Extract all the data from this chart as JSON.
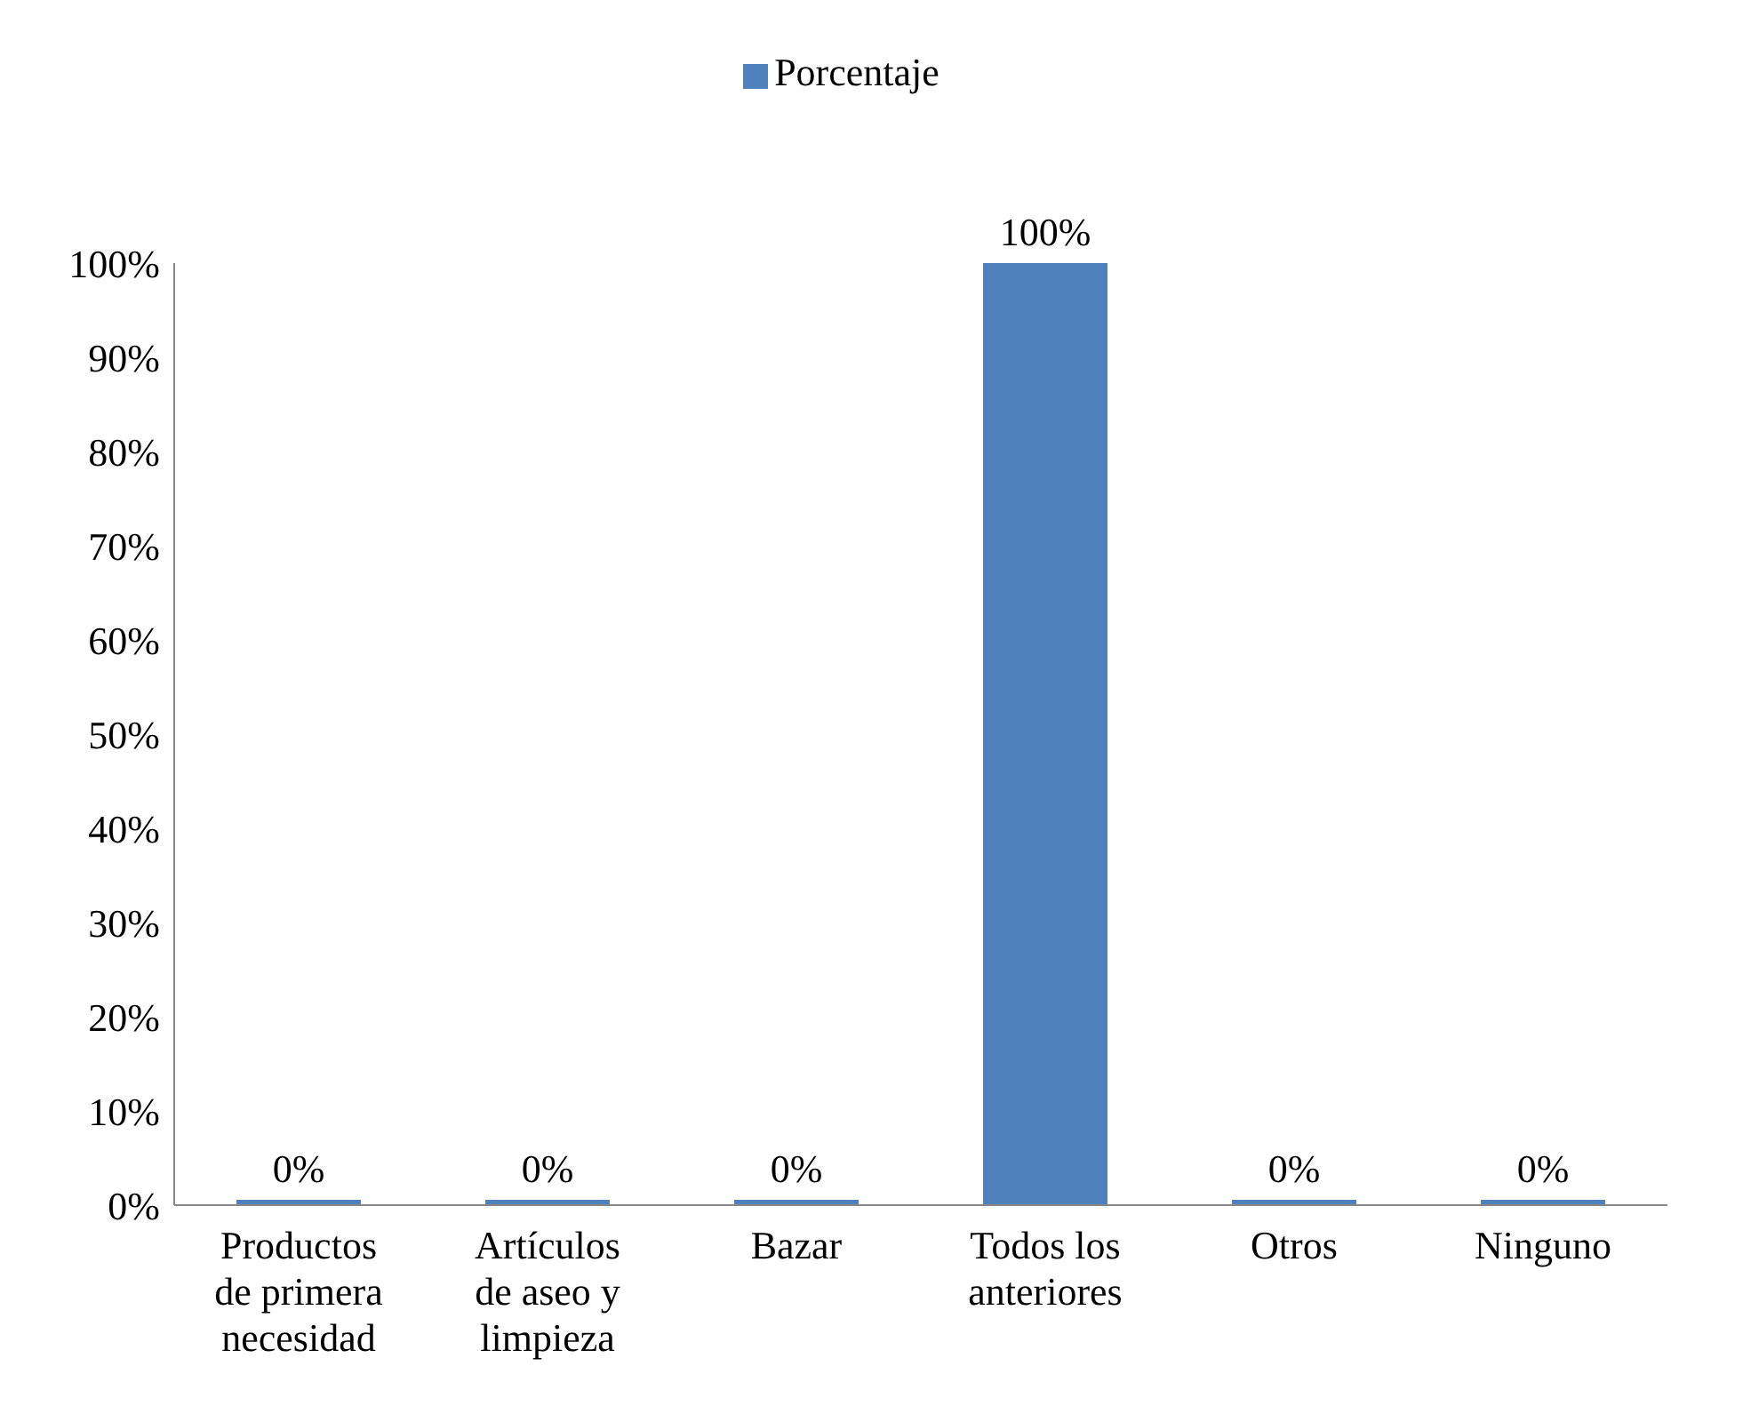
{
  "chart_data": {
    "type": "bar",
    "categories": [
      "Productos de primera necesidad",
      "Artículos de aseo y limpieza",
      "Bazar",
      "Todos los anteriores",
      "Otros",
      "Ninguno"
    ],
    "series": [
      {
        "name": "Porcentaje",
        "color": "#4f81bd",
        "values": [
          0,
          0,
          0,
          100,
          0,
          0
        ],
        "value_labels": [
          "0%",
          "0%",
          "0%",
          "100%",
          "0%",
          "0%"
        ]
      }
    ],
    "ylim": [
      0,
      100
    ],
    "yticks": [
      {
        "value": 0,
        "label": "0%"
      },
      {
        "value": 10,
        "label": "10%"
      },
      {
        "value": 20,
        "label": "20%"
      },
      {
        "value": 30,
        "label": "30%"
      },
      {
        "value": 40,
        "label": "40%"
      },
      {
        "value": 50,
        "label": "50%"
      },
      {
        "value": 60,
        "label": "60%"
      },
      {
        "value": 70,
        "label": "70%"
      },
      {
        "value": 80,
        "label": "80%"
      },
      {
        "value": 90,
        "label": "90%"
      },
      {
        "value": 100,
        "label": "100%"
      }
    ],
    "grid": false,
    "legend": "top"
  }
}
